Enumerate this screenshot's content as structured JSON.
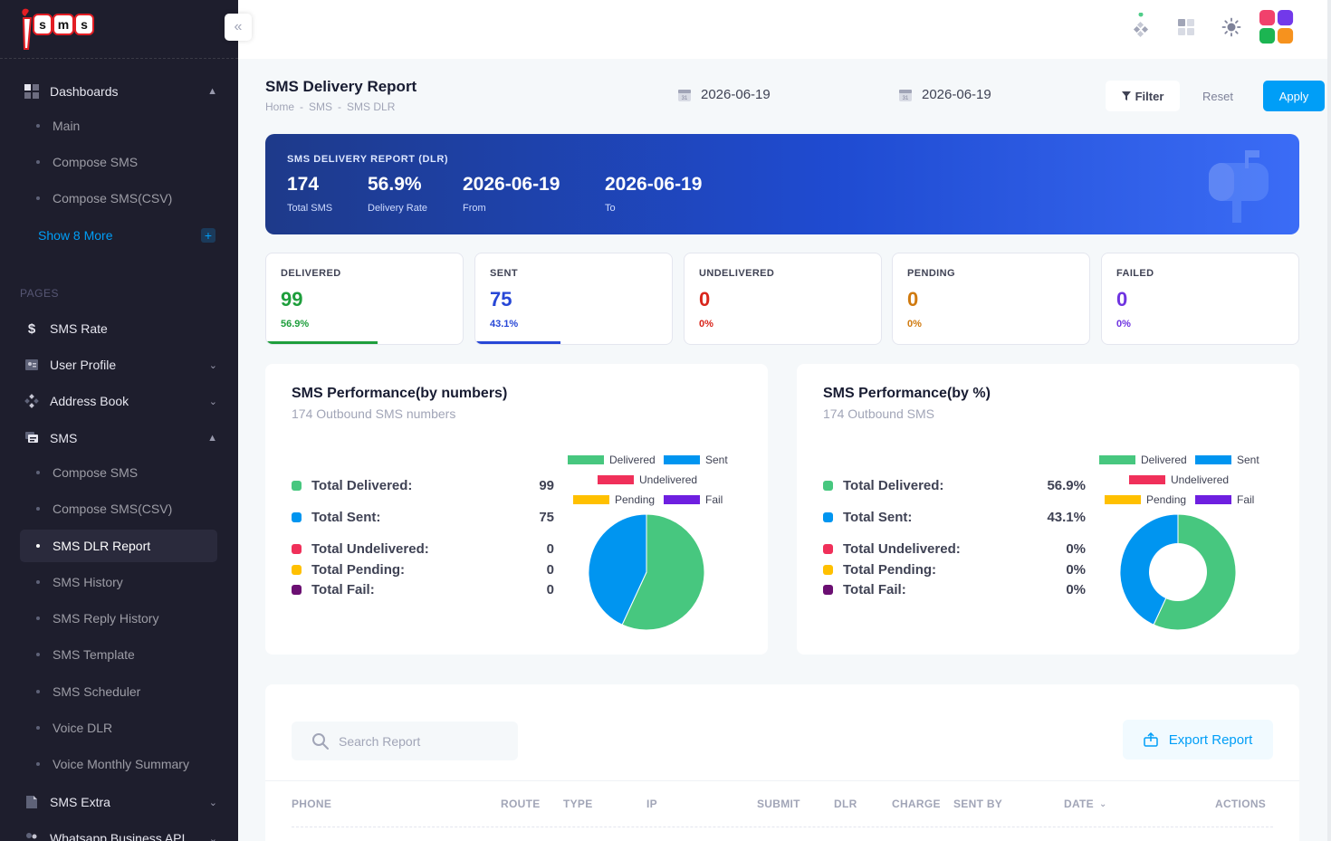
{
  "brand": {
    "logo_text": "isms"
  },
  "sidebar": {
    "dashboards_label": "Dashboards",
    "dash_sub": [
      "Main",
      "Compose SMS",
      "Compose SMS(CSV)"
    ],
    "show_more": "Show 8 More",
    "pages_label": "PAGES",
    "items": [
      "SMS Rate",
      "User Profile",
      "Address Book",
      "SMS"
    ],
    "sms_sub": [
      "Compose SMS",
      "Compose SMS(CSV)",
      "SMS DLR Report",
      "SMS History",
      "SMS Reply History",
      "SMS Template",
      "SMS Scheduler",
      "Voice DLR",
      "Voice Monthly Summary"
    ],
    "bottom_items": [
      "SMS Extra",
      "Whatsapp Business API"
    ]
  },
  "toolbar": {
    "title": "SMS Delivery Report",
    "breadcrumb": [
      "Home",
      "-",
      "SMS",
      "-",
      "SMS DLR"
    ],
    "date_from": "2026-06-19",
    "date_to": "2026-06-19",
    "filter_label": "Filter",
    "reset_label": "Reset",
    "apply_label": "Apply"
  },
  "banner": {
    "label": "SMS DELIVERY REPORT (DLR)",
    "total_value": "174",
    "total_label": "Total SMS",
    "rate_value": "56.9%",
    "rate_label": "Delivery Rate",
    "from_value": "2026-06-19",
    "from_label": "From",
    "to_value": "2026-06-19",
    "to_label": "To"
  },
  "cards": [
    {
      "label": "DELIVERED",
      "value": "99",
      "pct": "56.9%",
      "fill": 0.569,
      "color": "#1e9e3c"
    },
    {
      "label": "SENT",
      "value": "75",
      "pct": "43.1%",
      "fill": 0.431,
      "color": "#2747d6"
    },
    {
      "label": "UNDELIVERED",
      "value": "0",
      "pct": "0%",
      "fill": 0,
      "color": "#d9261c"
    },
    {
      "label": "PENDING",
      "value": "0",
      "pct": "0%",
      "fill": 0,
      "color": "#d07a0f"
    },
    {
      "label": "FAILED",
      "value": "0",
      "pct": "0%",
      "fill": 0,
      "color": "#6e33e0"
    }
  ],
  "perf_numbers": {
    "title": "SMS Performance(by numbers)",
    "subtitle": "174 Outbound SMS numbers",
    "rows": [
      {
        "name": "Total Delivered:",
        "value": "99"
      },
      {
        "name": "Total Sent:",
        "value": "75"
      },
      {
        "name": "Total Undelivered:",
        "value": "0"
      },
      {
        "name": "Total Pending:",
        "value": "0"
      },
      {
        "name": "Total Fail:",
        "value": "0"
      }
    ]
  },
  "perf_percent": {
    "title": "SMS Performance(by %)",
    "subtitle": "174 Outbound SMS",
    "rows": [
      {
        "name": "Total Delivered:",
        "value": "56.9%"
      },
      {
        "name": "Total Sent:",
        "value": "43.1%"
      },
      {
        "name": "Total Undelivered:",
        "value": "0%"
      },
      {
        "name": "Total Pending:",
        "value": "0%"
      },
      {
        "name": "Total Fail:",
        "value": "0%"
      }
    ]
  },
  "chart_legend": [
    "Delivered",
    "Sent",
    "Undelivered",
    "Pending",
    "Fail"
  ],
  "status_colors": {
    "delivered": "#47c77f",
    "sent": "#0095f0",
    "undelivered": "#f0305a",
    "pending": "#ffc000",
    "fail": "#6e1fe0",
    "fail_dot": "#6b0f72"
  },
  "chart_data": [
    {
      "type": "pie",
      "categories": [
        "Delivered",
        "Sent",
        "Undelivered",
        "Pending",
        "Fail"
      ],
      "values": [
        99,
        75,
        0,
        0,
        0
      ],
      "legend": "top"
    },
    {
      "type": "pie",
      "donut": true,
      "categories": [
        "Delivered",
        "Sent",
        "Undelivered",
        "Pending",
        "Fail"
      ],
      "values": [
        56.9,
        43.1,
        0,
        0,
        0
      ],
      "legend": "top"
    }
  ],
  "table": {
    "search_placeholder": "Search Report",
    "export_label": "Export Report",
    "columns": [
      "PHONE",
      "ROUTE",
      "TYPE",
      "IP",
      "SUBMIT",
      "DLR",
      "CHARGE",
      "SENT BY",
      "DATE",
      "ACTIONS"
    ]
  }
}
